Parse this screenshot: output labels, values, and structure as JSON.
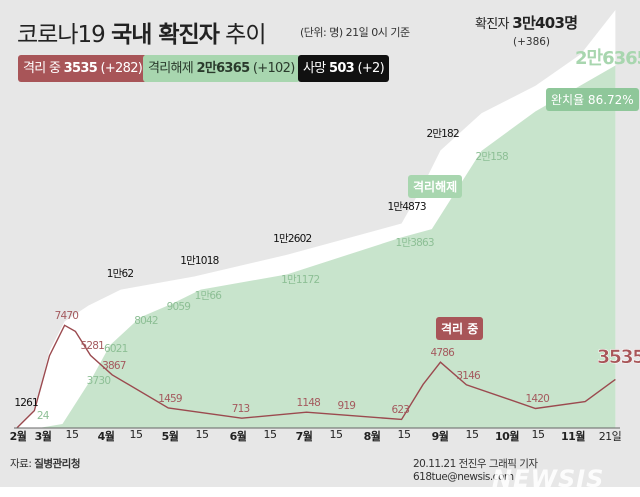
{
  "header": {
    "title_plain": "코로나19 ",
    "title_bold": "국내 확진자",
    "title_tail": " 추이",
    "unit_note": "(단위: 명) 21일 0시 기준",
    "total_label": "확진자",
    "total_value": "3만403명",
    "total_delta": "(+386)"
  },
  "legend": {
    "isolation": {
      "label": "격리 중",
      "value": "3535",
      "delta": "(+282)",
      "color": "#a85558"
    },
    "released": {
      "label": "격리해제",
      "value": "2만6365",
      "delta": "(+102)",
      "color": "#a8d6af"
    },
    "deaths": {
      "label": "사망",
      "value": "503",
      "delta": "(+2)",
      "color": "#111111"
    }
  },
  "annotations": {
    "released_end": "2만6365",
    "recovery_rate": "완치율 86.72%",
    "released_tag": "격리해제",
    "isolation_tag": "격리 중",
    "isolation_end": "3535"
  },
  "chart_data": {
    "type": "area",
    "xlabel": "",
    "ylabel": "",
    "x_ticks": [
      "2월",
      "3월",
      "15",
      "4월",
      "15",
      "5월",
      "15",
      "6월",
      "15",
      "7월",
      "15",
      "8월",
      "15",
      "9월",
      "15",
      "10월",
      "15",
      "11월",
      "21일"
    ],
    "series": [
      {
        "key": "confirmed",
        "color": "#ffffff",
        "points": [
          {
            "date": "2020-02-18",
            "value": 31
          },
          {
            "date": "2020-02-26",
            "value": 1261,
            "label": "1261"
          },
          {
            "date": "2020-03-04",
            "value": 5621
          },
          {
            "date": "2020-03-11",
            "value": 7755
          },
          {
            "date": "2020-03-22",
            "value": 8897
          },
          {
            "date": "2020-04-06",
            "value": 10062,
            "label": "1만62"
          },
          {
            "date": "2020-05-10",
            "value": 11018,
            "label": "1만1018"
          },
          {
            "date": "2020-06-22",
            "value": 12602,
            "label": "1만2602"
          },
          {
            "date": "2020-08-14",
            "value": 14873,
            "label": "1만4873"
          },
          {
            "date": "2020-08-24",
            "value": 17665
          },
          {
            "date": "2020-09-01",
            "value": 20182,
            "label": "2만182"
          },
          {
            "date": "2020-09-20",
            "value": 22893
          },
          {
            "date": "2020-10-15",
            "value": 24889
          },
          {
            "date": "2020-11-05",
            "value": 27195
          },
          {
            "date": "2020-11-21",
            "value": 30403
          }
        ]
      },
      {
        "key": "released",
        "color": "#c8e4cc",
        "points": [
          {
            "date": "2020-02-18",
            "value": 12
          },
          {
            "date": "2020-02-29",
            "value": 24,
            "label": "24"
          },
          {
            "date": "2020-03-10",
            "value": 288
          },
          {
            "date": "2020-03-24",
            "value": 3730,
            "label": "3730"
          },
          {
            "date": "2020-04-01",
            "value": 6021,
            "label": "6021"
          },
          {
            "date": "2020-04-15",
            "value": 8042,
            "label": "8042"
          },
          {
            "date": "2020-04-30",
            "value": 9059,
            "label": "9059"
          },
          {
            "date": "2020-05-13",
            "value": 10066,
            "label": "1만66"
          },
          {
            "date": "2020-06-22",
            "value": 11172,
            "label": "1만1172"
          },
          {
            "date": "2020-08-14",
            "value": 13863,
            "label": "1만3863"
          },
          {
            "date": "2020-08-28",
            "value": 14461
          },
          {
            "date": "2020-09-20",
            "value": 20158,
            "label": "2만158"
          },
          {
            "date": "2020-10-15",
            "value": 23030
          },
          {
            "date": "2020-11-21",
            "value": 26365
          }
        ]
      },
      {
        "key": "isolation",
        "color": "#9b4a4f",
        "points": [
          {
            "date": "2020-02-18",
            "value": 19
          },
          {
            "date": "2020-02-26",
            "value": 1261
          },
          {
            "date": "2020-03-04",
            "value": 5255
          },
          {
            "date": "2020-03-11",
            "value": 7470,
            "label": "7470"
          },
          {
            "date": "2020-03-16",
            "value": 7024
          },
          {
            "date": "2020-03-23",
            "value": 5281,
            "label": "5281"
          },
          {
            "date": "2020-04-02",
            "value": 3867,
            "label": "3867"
          },
          {
            "date": "2020-04-28",
            "value": 1459,
            "label": "1459"
          },
          {
            "date": "2020-06-01",
            "value": 713,
            "label": "713"
          },
          {
            "date": "2020-07-01",
            "value": 1148,
            "label": "1148"
          },
          {
            "date": "2020-07-20",
            "value": 919,
            "label": "919"
          },
          {
            "date": "2020-08-14",
            "value": 623,
            "label": "623"
          },
          {
            "date": "2020-08-24",
            "value": 3176
          },
          {
            "date": "2020-09-01",
            "value": 4786,
            "label": "4786"
          },
          {
            "date": "2020-09-13",
            "value": 3146,
            "label": "3146"
          },
          {
            "date": "2020-10-15",
            "value": 1420,
            "label": "1420"
          },
          {
            "date": "2020-11-07",
            "value": 1923
          },
          {
            "date": "2020-11-21",
            "value": 3535,
            "label": "3535"
          }
        ]
      }
    ]
  },
  "footer": {
    "source_label": "자료:",
    "source_value": "질병관리청",
    "credit": "20.11.21 전진우 그래픽 기자 618tue@newsis.com",
    "watermark": "NEWSIS"
  }
}
